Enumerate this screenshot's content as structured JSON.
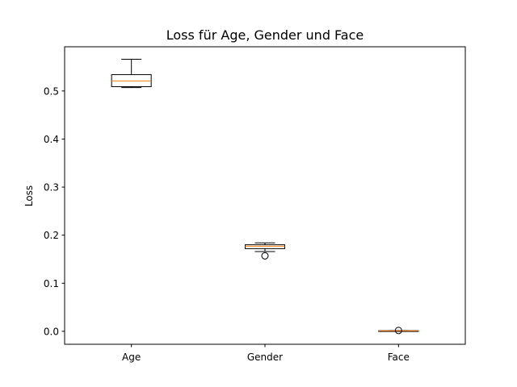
{
  "chart_data": {
    "type": "boxplot",
    "title": "Loss für Age, Gender und Face",
    "xlabel": "",
    "ylabel": "Loss",
    "ylim": [
      -0.027,
      0.592
    ],
    "yticks": [
      0.0,
      0.1,
      0.2,
      0.3,
      0.4,
      0.5
    ],
    "ytick_labels": [
      "0.0",
      "0.1",
      "0.2",
      "0.3",
      "0.4",
      "0.5"
    ],
    "categories": [
      "Age",
      "Gender",
      "Face"
    ],
    "boxes": [
      {
        "label": "Age",
        "whisker_low": 0.507,
        "q1": 0.509,
        "median": 0.521,
        "q3": 0.534,
        "whisker_high": 0.566,
        "fliers": []
      },
      {
        "label": "Gender",
        "whisker_low": 0.166,
        "q1": 0.172,
        "median": 0.177,
        "q3": 0.18,
        "whisker_high": 0.184,
        "fliers": [
          0.157
        ]
      },
      {
        "label": "Face",
        "whisker_low": 0.0002,
        "q1": 0.0006,
        "median": 0.0009,
        "q3": 0.0013,
        "whisker_high": 0.0016,
        "fliers": [
          0.0017
        ]
      }
    ],
    "grid": false,
    "colors": {
      "box": "#000000",
      "median": "#ff7f0e",
      "flier": "#000000"
    }
  }
}
